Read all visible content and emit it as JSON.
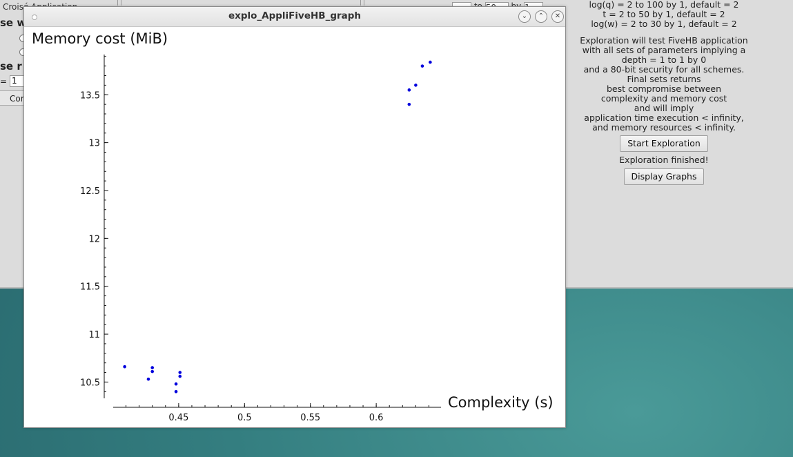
{
  "background_app": {
    "title_fragment": "Croisé Application",
    "heading_fragment_1": "se w",
    "heading_fragment_2": "se r",
    "eq_fragment": "=",
    "input_value": "1",
    "button_fragment": "Cor",
    "top_input_label_1": "to",
    "top_input_value_1": "50",
    "top_input_label_2": "by",
    "top_input_value_2": "1"
  },
  "right_panel": {
    "params": [
      "log(q) = 2 to 100 by 1, default = 2",
      "t = 2 to 50 by 1, default = 2",
      "log(w) = 2 to 30 by 1, default = 2"
    ],
    "description": [
      "Exploration will test FiveHB application",
      "with all sets of parameters implying a",
      "depth = 1 to 1 by 0",
      "and a 80-bit security for all schemes.",
      "Final sets returns",
      "best compromise between",
      "complexity and memory cost",
      "and will imply",
      "application time execution < infinity,",
      "and memory resources < infinity."
    ],
    "start_button": "Start Exploration",
    "status": "Exploration finished!",
    "display_button": "Display Graphs"
  },
  "window": {
    "title": "explo_AppliFiveHB_graph",
    "minimize_icon": "chevron-down-icon",
    "maximize_icon": "chevron-up-icon",
    "close_icon": "close-icon"
  },
  "chart_data": {
    "type": "scatter",
    "title": "",
    "xlabel": "Complexity (s)",
    "ylabel": "Memory cost (MiB)",
    "xlim": [
      0.405,
      0.645
    ],
    "ylim": [
      10.33,
      13.92
    ],
    "x_ticks": [
      0.45,
      0.5,
      0.55,
      0.6
    ],
    "x_tick_labels": [
      "0.45",
      "0.5",
      "0.55",
      "0.6"
    ],
    "y_ticks": [
      10.5,
      11,
      11.5,
      12,
      12.5,
      13,
      13.5
    ],
    "y_tick_labels": [
      "10.5",
      "11",
      "11.5",
      "12",
      "12.5",
      "13",
      "13.5"
    ],
    "grid": false,
    "marker_color": "#0000dd",
    "points": [
      {
        "x": 0.409,
        "y": 10.66
      },
      {
        "x": 0.427,
        "y": 10.53
      },
      {
        "x": 0.43,
        "y": 10.65
      },
      {
        "x": 0.43,
        "y": 10.61
      },
      {
        "x": 0.448,
        "y": 10.48
      },
      {
        "x": 0.448,
        "y": 10.4
      },
      {
        "x": 0.451,
        "y": 10.6
      },
      {
        "x": 0.451,
        "y": 10.56
      },
      {
        "x": 0.625,
        "y": 13.55
      },
      {
        "x": 0.625,
        "y": 13.4
      },
      {
        "x": 0.63,
        "y": 13.6
      },
      {
        "x": 0.635,
        "y": 13.8
      },
      {
        "x": 0.641,
        "y": 13.84
      }
    ]
  }
}
